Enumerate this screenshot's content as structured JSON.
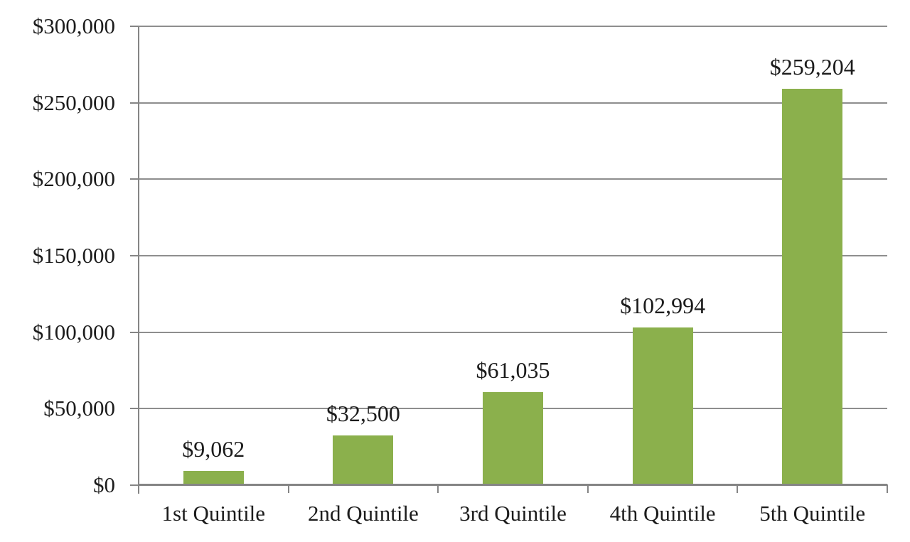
{
  "chart_data": {
    "type": "bar",
    "title": "",
    "xlabel": "",
    "ylabel": "",
    "categories": [
      "1st Quintile",
      "2nd Quintile",
      "3rd Quintile",
      "4th Quintile",
      "5th Quintile"
    ],
    "values": [
      9062,
      32500,
      61035,
      102994,
      259204
    ],
    "value_labels": [
      "$9,062",
      "$32,500",
      "$61,035",
      "$102,994",
      "$259,204"
    ],
    "ylim": [
      0,
      300000
    ],
    "y_tick_step": 50000,
    "y_tick_labels": [
      "$0",
      "$50,000",
      "$100,000",
      "$150,000",
      "$200,000",
      "$250,000",
      "$300,000"
    ],
    "grid": true,
    "legend_position": "none",
    "colors": {
      "bar": "#8bb04c",
      "gridline": "#8e8e8e",
      "axis": "#858585",
      "text": "#1c1c1c",
      "background": "#ffffff"
    }
  }
}
